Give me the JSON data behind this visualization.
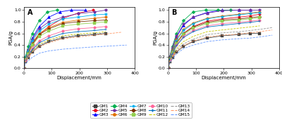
{
  "title_A": "A",
  "title_B": "B",
  "xlabel": "Displacement/mm",
  "ylabel": "PGA/g",
  "xlim": [
    0,
    400
  ],
  "ylim": [
    0,
    1.05
  ],
  "xticks": [
    0,
    100,
    200,
    300,
    400
  ],
  "yticks": [
    0.0,
    0.2,
    0.4,
    0.6,
    0.8,
    1.0
  ],
  "gm_labels": [
    "GM1",
    "GM2",
    "GM3",
    "GM4",
    "GM5",
    "GM6",
    "GM7",
    "GM8",
    "GM9",
    "GM10",
    "GM11",
    "GM12",
    "GM13",
    "GM14",
    "GM15"
  ],
  "gm_colors": [
    "#3f3f3f",
    "#e8001c",
    "#0000ff",
    "#00b050",
    "#7030a0",
    "#e07000",
    "#00b0f0",
    "#7b3200",
    "#92d050",
    "#ff6699",
    "#0070c0",
    "#c8c800",
    "#969696",
    "#ff9966",
    "#6699ff"
  ],
  "gm_markers": [
    "s",
    "o",
    "^",
    "D",
    "p",
    "o",
    "*",
    "D",
    "s",
    "o",
    "+",
    "",
    "",
    "",
    ""
  ],
  "gm_linestyles": [
    "-",
    "-",
    "-",
    "-",
    "-",
    "-",
    "-",
    "-",
    "-",
    "-",
    "-",
    "--",
    "--",
    "--",
    "--"
  ],
  "panel_A": {
    "curves": [
      {
        "x": [
          0,
          5,
          15,
          30,
          55,
          90,
          140,
          195,
          255,
          295
        ],
        "y": [
          0.0,
          0.12,
          0.19,
          0.28,
          0.38,
          0.46,
          0.52,
          0.56,
          0.58,
          0.6
        ]
      },
      {
        "x": [
          0,
          5,
          15,
          30,
          55,
          90,
          140,
          195,
          250
        ],
        "y": [
          0.0,
          0.14,
          0.24,
          0.4,
          0.58,
          0.72,
          0.86,
          0.95,
          1.0
        ]
      },
      {
        "x": [
          0,
          5,
          15,
          30,
          55,
          90,
          130,
          170,
          220
        ],
        "y": [
          0.0,
          0.18,
          0.32,
          0.52,
          0.72,
          0.88,
          0.97,
          1.0,
          1.0
        ]
      },
      {
        "x": [
          0,
          5,
          15,
          30,
          55,
          85,
          120
        ],
        "y": [
          0.0,
          0.2,
          0.38,
          0.6,
          0.82,
          0.97,
          1.0
        ]
      },
      {
        "x": [
          0,
          5,
          15,
          30,
          55,
          90,
          140,
          195,
          255,
          295
        ],
        "y": [
          0.0,
          0.18,
          0.32,
          0.5,
          0.68,
          0.8,
          0.88,
          0.94,
          0.97,
          1.0
        ]
      },
      {
        "x": [
          0,
          5,
          15,
          30,
          55,
          90,
          140,
          195,
          255,
          295
        ],
        "y": [
          0.0,
          0.16,
          0.28,
          0.44,
          0.6,
          0.7,
          0.79,
          0.83,
          0.86,
          0.88
        ]
      },
      {
        "x": [
          0,
          5,
          15,
          30,
          55,
          90,
          140,
          195,
          255,
          295
        ],
        "y": [
          0.0,
          0.18,
          0.3,
          0.48,
          0.64,
          0.76,
          0.85,
          0.88,
          0.92,
          0.93
        ]
      },
      {
        "x": [
          0,
          5,
          15,
          30,
          55,
          90,
          140,
          195,
          255,
          295
        ],
        "y": [
          0.0,
          0.16,
          0.26,
          0.42,
          0.58,
          0.68,
          0.77,
          0.8,
          0.82,
          0.83
        ]
      },
      {
        "x": [
          0,
          5,
          15,
          30,
          55,
          90,
          140,
          195,
          255,
          295
        ],
        "y": [
          0.0,
          0.15,
          0.25,
          0.4,
          0.55,
          0.64,
          0.73,
          0.76,
          0.78,
          0.8
        ]
      },
      {
        "x": [
          0,
          5,
          15,
          30,
          55,
          90,
          140,
          195,
          255,
          295
        ],
        "y": [
          0.0,
          0.14,
          0.22,
          0.34,
          0.47,
          0.56,
          0.64,
          0.68,
          0.7,
          0.72
        ]
      },
      {
        "x": [
          0,
          5,
          15,
          30,
          55,
          90,
          140,
          195,
          255,
          295
        ],
        "y": [
          0.0,
          0.13,
          0.21,
          0.32,
          0.44,
          0.52,
          0.6,
          0.63,
          0.65,
          0.67
        ]
      },
      {
        "x": [
          0,
          5,
          15,
          30,
          55,
          90,
          140,
          195,
          255,
          295
        ],
        "y": [
          0.0,
          0.12,
          0.2,
          0.3,
          0.41,
          0.49,
          0.56,
          0.59,
          0.61,
          0.63
        ]
      },
      {
        "x": [
          0,
          5,
          15,
          30,
          55,
          90,
          140,
          195,
          255,
          295
        ],
        "y": [
          0.0,
          0.12,
          0.19,
          0.29,
          0.39,
          0.47,
          0.54,
          0.57,
          0.59,
          0.61
        ]
      },
      {
        "x": [
          0,
          5,
          15,
          30,
          55,
          90,
          140,
          195,
          255,
          295,
          350
        ],
        "y": [
          0.0,
          0.12,
          0.19,
          0.28,
          0.37,
          0.44,
          0.51,
          0.54,
          0.57,
          0.59,
          0.62
        ]
      },
      {
        "x": [
          0,
          5,
          15,
          30,
          55,
          90,
          140,
          195,
          255,
          295,
          370
        ],
        "y": [
          0.0,
          0.08,
          0.13,
          0.19,
          0.26,
          0.3,
          0.33,
          0.35,
          0.37,
          0.38,
          0.4
        ]
      }
    ]
  },
  "panel_B": {
    "curves": [
      {
        "x": [
          0,
          5,
          15,
          30,
          55,
          90,
          140,
          195,
          255,
          295,
          330
        ],
        "y": [
          0.0,
          0.12,
          0.19,
          0.28,
          0.38,
          0.46,
          0.52,
          0.56,
          0.58,
          0.6,
          0.6
        ]
      },
      {
        "x": [
          0,
          5,
          15,
          30,
          55,
          90,
          140,
          195,
          255,
          295,
          330
        ],
        "y": [
          0.0,
          0.15,
          0.26,
          0.43,
          0.6,
          0.72,
          0.81,
          0.85,
          0.88,
          0.9,
          0.93
        ]
      },
      {
        "x": [
          0,
          5,
          15,
          30,
          55,
          90,
          140,
          195,
          255,
          295
        ],
        "y": [
          0.0,
          0.18,
          0.34,
          0.54,
          0.74,
          0.88,
          0.96,
          1.0,
          1.0,
          1.0
        ]
      },
      {
        "x": [
          0,
          5,
          15,
          30,
          55,
          90,
          135,
          180,
          225
        ],
        "y": [
          0.0,
          0.2,
          0.38,
          0.6,
          0.82,
          0.97,
          1.0,
          1.0,
          1.0
        ]
      },
      {
        "x": [
          0,
          5,
          15,
          30,
          55,
          90,
          140,
          195,
          255,
          295,
          330
        ],
        "y": [
          0.0,
          0.2,
          0.36,
          0.56,
          0.76,
          0.88,
          0.95,
          0.99,
          1.0,
          1.0,
          1.0
        ]
      },
      {
        "x": [
          0,
          5,
          15,
          30,
          55,
          90,
          140,
          195,
          255,
          295,
          330
        ],
        "y": [
          0.0,
          0.18,
          0.32,
          0.5,
          0.67,
          0.78,
          0.86,
          0.9,
          0.93,
          0.95,
          0.97
        ]
      },
      {
        "x": [
          0,
          5,
          15,
          30,
          55,
          90,
          140,
          195,
          255,
          295,
          330
        ],
        "y": [
          0.0,
          0.18,
          0.3,
          0.48,
          0.65,
          0.77,
          0.85,
          0.89,
          0.92,
          0.94,
          0.96
        ]
      },
      {
        "x": [
          0,
          5,
          15,
          30,
          55,
          90,
          140,
          195,
          255,
          295,
          330
        ],
        "y": [
          0.0,
          0.17,
          0.28,
          0.44,
          0.6,
          0.71,
          0.79,
          0.83,
          0.85,
          0.87,
          0.89
        ]
      },
      {
        "x": [
          0,
          5,
          15,
          30,
          55,
          90,
          140,
          195,
          255,
          295,
          330
        ],
        "y": [
          0.0,
          0.16,
          0.27,
          0.43,
          0.58,
          0.69,
          0.77,
          0.81,
          0.83,
          0.85,
          0.87
        ]
      },
      {
        "x": [
          0,
          5,
          15,
          30,
          55,
          90,
          140,
          195,
          255,
          295,
          330
        ],
        "y": [
          0.0,
          0.15,
          0.25,
          0.4,
          0.55,
          0.65,
          0.73,
          0.77,
          0.79,
          0.81,
          0.83
        ]
      },
      {
        "x": [
          0,
          5,
          15,
          30,
          55,
          90,
          140,
          195,
          255,
          295,
          330
        ],
        "y": [
          0.0,
          0.15,
          0.25,
          0.39,
          0.53,
          0.63,
          0.71,
          0.74,
          0.77,
          0.79,
          0.81
        ]
      },
      {
        "x": [
          0,
          5,
          15,
          30,
          55,
          90,
          140,
          195,
          255,
          295,
          330
        ],
        "y": [
          0.0,
          0.13,
          0.22,
          0.34,
          0.46,
          0.55,
          0.63,
          0.66,
          0.69,
          0.71,
          0.73
        ]
      },
      {
        "x": [
          0,
          5,
          15,
          30,
          55,
          90,
          140,
          195,
          255,
          295,
          330,
          375
        ],
        "y": [
          0.0,
          0.12,
          0.2,
          0.31,
          0.42,
          0.5,
          0.58,
          0.61,
          0.63,
          0.65,
          0.67,
          0.7
        ]
      },
      {
        "x": [
          0,
          5,
          15,
          30,
          55,
          90,
          140,
          195,
          255,
          295,
          330,
          375
        ],
        "y": [
          0.0,
          0.12,
          0.19,
          0.29,
          0.39,
          0.47,
          0.54,
          0.57,
          0.59,
          0.61,
          0.63,
          0.66
        ]
      },
      {
        "x": [
          0,
          5,
          15,
          30,
          55,
          90,
          140,
          195,
          255,
          295,
          330,
          375
        ],
        "y": [
          0.0,
          0.1,
          0.16,
          0.25,
          0.34,
          0.4,
          0.46,
          0.49,
          0.51,
          0.52,
          0.54,
          0.57
        ]
      }
    ]
  }
}
